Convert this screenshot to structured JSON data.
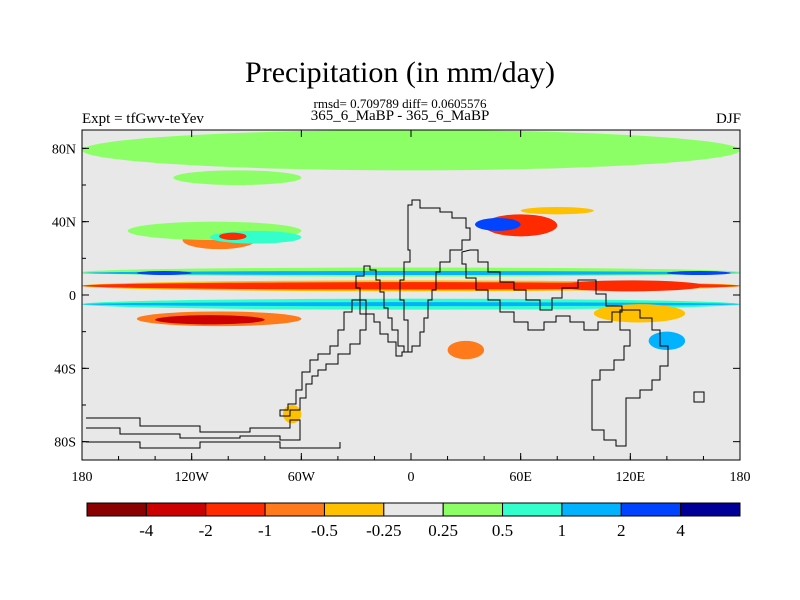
{
  "title": "Precipitation (in mm/day)",
  "stats": "rmsd= 0.709789 diff= 0.0605576",
  "runs": "365_6_MaBP - 365_6_MaBP",
  "expt": "Expt = tfGwv-teYev",
  "season": "DJF",
  "axes": {
    "lat_labels": [
      "80N",
      "40N",
      "0",
      "40S",
      "80S"
    ],
    "lat_values": [
      80,
      40,
      0,
      -40,
      -80
    ],
    "lon_labels": [
      "180",
      "120W",
      "60W",
      "0",
      "60E",
      "120E",
      "180"
    ],
    "lon_values": [
      -180,
      -120,
      -60,
      0,
      60,
      120,
      180
    ],
    "lat_range": [
      -90,
      90
    ],
    "lon_range": [
      -180,
      180
    ]
  },
  "colorbar": {
    "colors": [
      "#8b0000",
      "#cc0000",
      "#ff2a00",
      "#ff7a1a",
      "#ffc000",
      "#e8e8e8",
      "#8cff66",
      "#33ffcc",
      "#00b2ff",
      "#0044ff",
      "#000099"
    ],
    "labels": [
      "-4",
      "-2",
      "-1",
      "-0.5",
      "-0.25",
      "0.25",
      "0.5",
      "1",
      "2",
      "4"
    ],
    "levels": [
      -4,
      -2,
      -1,
      -0.5,
      -0.25,
      0.25,
      0.5,
      1,
      2,
      4
    ]
  },
  "chart_data": {
    "type": "heatmap",
    "title": "Precipitation (in mm/day)",
    "subtitle": "365_6_MaBP - 365_6_MaBP",
    "xlabel": "",
    "ylabel": "",
    "xlim": [
      -180,
      180
    ],
    "ylim": [
      -90,
      90
    ],
    "background_value_range": [
      -0.25,
      0.25
    ],
    "regions": [
      {
        "lon": -180,
        "lat": 68,
        "lon2": 180,
        "lat2": 90,
        "value": 0.35
      },
      {
        "lon": -130,
        "lat": 60,
        "lon2": -60,
        "lat2": 68,
        "value": 0.35
      },
      {
        "lon": -125,
        "lat": 25,
        "lon2": -85,
        "lat2": 35,
        "value": -1
      },
      {
        "lon": -155,
        "lat": 30,
        "lon2": -60,
        "lat2": 40,
        "value": 0.35
      },
      {
        "lon": -110,
        "lat": 28,
        "lon2": -60,
        "lat2": 35,
        "value": 0.6
      },
      {
        "lon": -105,
        "lat": 30,
        "lon2": -90,
        "lat2": 34,
        "value": -2
      },
      {
        "lon": -180,
        "lat": 10,
        "lon2": 180,
        "lat2": 15,
        "value": 0.35
      },
      {
        "lon": -180,
        "lat": 11,
        "lon2": 180,
        "lat2": 13,
        "value": 1
      },
      {
        "lon": -150,
        "lat": 11,
        "lon2": -120,
        "lat2": 13,
        "value": 2
      },
      {
        "lon": 140,
        "lat": 11,
        "lon2": 175,
        "lat2": 13,
        "value": 2
      },
      {
        "lon": -180,
        "lat": 2,
        "lon2": 180,
        "lat2": 8,
        "value": -0.5
      },
      {
        "lon": -180,
        "lat": 3,
        "lon2": 180,
        "lat2": 7,
        "value": -2
      },
      {
        "lon": 80,
        "lat": 2,
        "lon2": 160,
        "lat2": 8,
        "value": -2
      },
      {
        "lon": -180,
        "lat": -8,
        "lon2": 180,
        "lat2": -2,
        "value": 0.6
      },
      {
        "lon": -180,
        "lat": -6,
        "lon2": 180,
        "lat2": -4,
        "value": 1
      },
      {
        "lon": -150,
        "lat": -17,
        "lon2": -60,
        "lat2": -9,
        "value": -1
      },
      {
        "lon": -140,
        "lat": -16,
        "lon2": -80,
        "lat2": -11,
        "value": -4
      },
      {
        "lon": 40,
        "lat": 32,
        "lon2": 80,
        "lat2": 44,
        "value": -2
      },
      {
        "lon": 35,
        "lat": 35,
        "lon2": 60,
        "lat2": 42,
        "value": 2
      },
      {
        "lon": 60,
        "lat": 44,
        "lon2": 100,
        "lat2": 48,
        "value": -0.5
      },
      {
        "lon": 20,
        "lat": -35,
        "lon2": 40,
        "lat2": -25,
        "value": -1
      },
      {
        "lon": 100,
        "lat": -15,
        "lon2": 150,
        "lat2": -5,
        "value": -0.5
      },
      {
        "lon": 130,
        "lat": -30,
        "lon2": 150,
        "lat2": -20,
        "value": 1
      },
      {
        "lon": -70,
        "lat": -70,
        "lon2": -60,
        "lat2": -60,
        "value": -0.5
      },
      {
        "lon": 50,
        "lat": -90,
        "lon2": 150,
        "lat2": -85,
        "value": -0.25
      }
    ]
  }
}
